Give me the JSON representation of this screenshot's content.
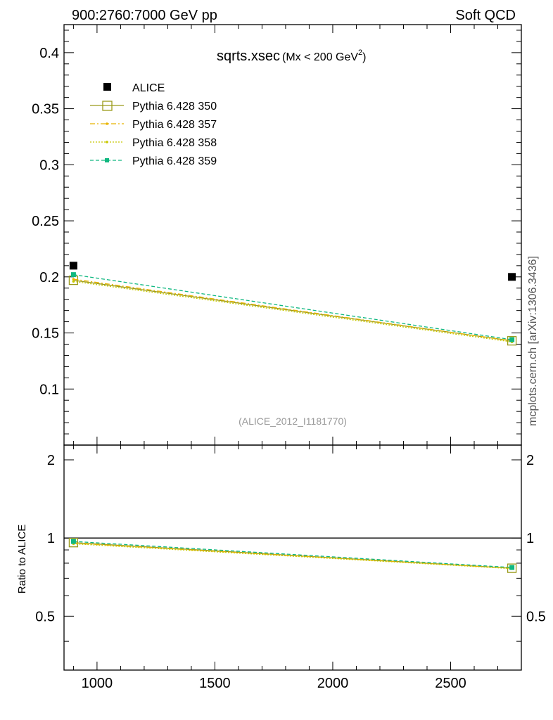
{
  "header": {
    "left": "900:2760:7000 GeV pp",
    "right": "Soft QCD"
  },
  "side_label": "mcplots.cern.ch [arXiv:1306.3436]",
  "chart_data": {
    "type": "scatter",
    "title_main": "sqrts.xsec",
    "title_sub": "(Mx < 200 GeV",
    "title_sup": "2",
    "title_close": ")",
    "watermark": "(ALICE_2012_I1181770)",
    "xlim": [
      860,
      2800
    ],
    "ylim": [
      0.05,
      0.425
    ],
    "x_ticks": [
      1000,
      1500,
      2000,
      2500
    ],
    "x_tick_labels": [
      "1000",
      "1500",
      "2000",
      "2500"
    ],
    "y_ticks": [
      0.1,
      0.15,
      0.2,
      0.25,
      0.3,
      0.35,
      0.4
    ],
    "y_tick_labels": [
      "0.1",
      "0.15",
      "0.2",
      "0.25",
      "0.3",
      "0.35",
      "0.4"
    ],
    "x": [
      900,
      2760
    ],
    "data": {
      "name": "ALICE",
      "color": "#000000",
      "values": [
        0.21,
        0.2
      ]
    },
    "series": [
      {
        "name": "Pythia 6.428 350",
        "color": "#9a9a1a",
        "style": "solid",
        "marker": "open-square",
        "values": [
          0.197,
          0.143
        ]
      },
      {
        "name": "Pythia 6.428 357",
        "color": "#e8b400",
        "style": "dashdot",
        "marker": "dot",
        "values": [
          0.198,
          0.143
        ]
      },
      {
        "name": "Pythia 6.428 358",
        "color": "#c8c800",
        "style": "dotted",
        "marker": "dot",
        "values": [
          0.196,
          0.142
        ]
      },
      {
        "name": "Pythia 6.428 359",
        "color": "#10b880",
        "style": "dashed",
        "marker": "filled-square",
        "values": [
          0.202,
          0.144
        ]
      }
    ],
    "ratio": {
      "ylabel": "Ratio to ALICE",
      "ylim": [
        0.31,
        2.28
      ],
      "y_ticks": [
        0.5,
        1,
        2
      ],
      "y_tick_labels": [
        "0.5",
        "1",
        "2"
      ],
      "series": [
        {
          "name": "Pythia 6.428 350",
          "values": [
            0.96,
            0.765
          ]
        },
        {
          "name": "Pythia 6.428 357",
          "values": [
            0.955,
            0.765
          ]
        },
        {
          "name": "Pythia 6.428 358",
          "values": [
            0.95,
            0.762
          ]
        },
        {
          "name": "Pythia 6.428 359",
          "values": [
            0.97,
            0.77
          ]
        }
      ]
    }
  }
}
